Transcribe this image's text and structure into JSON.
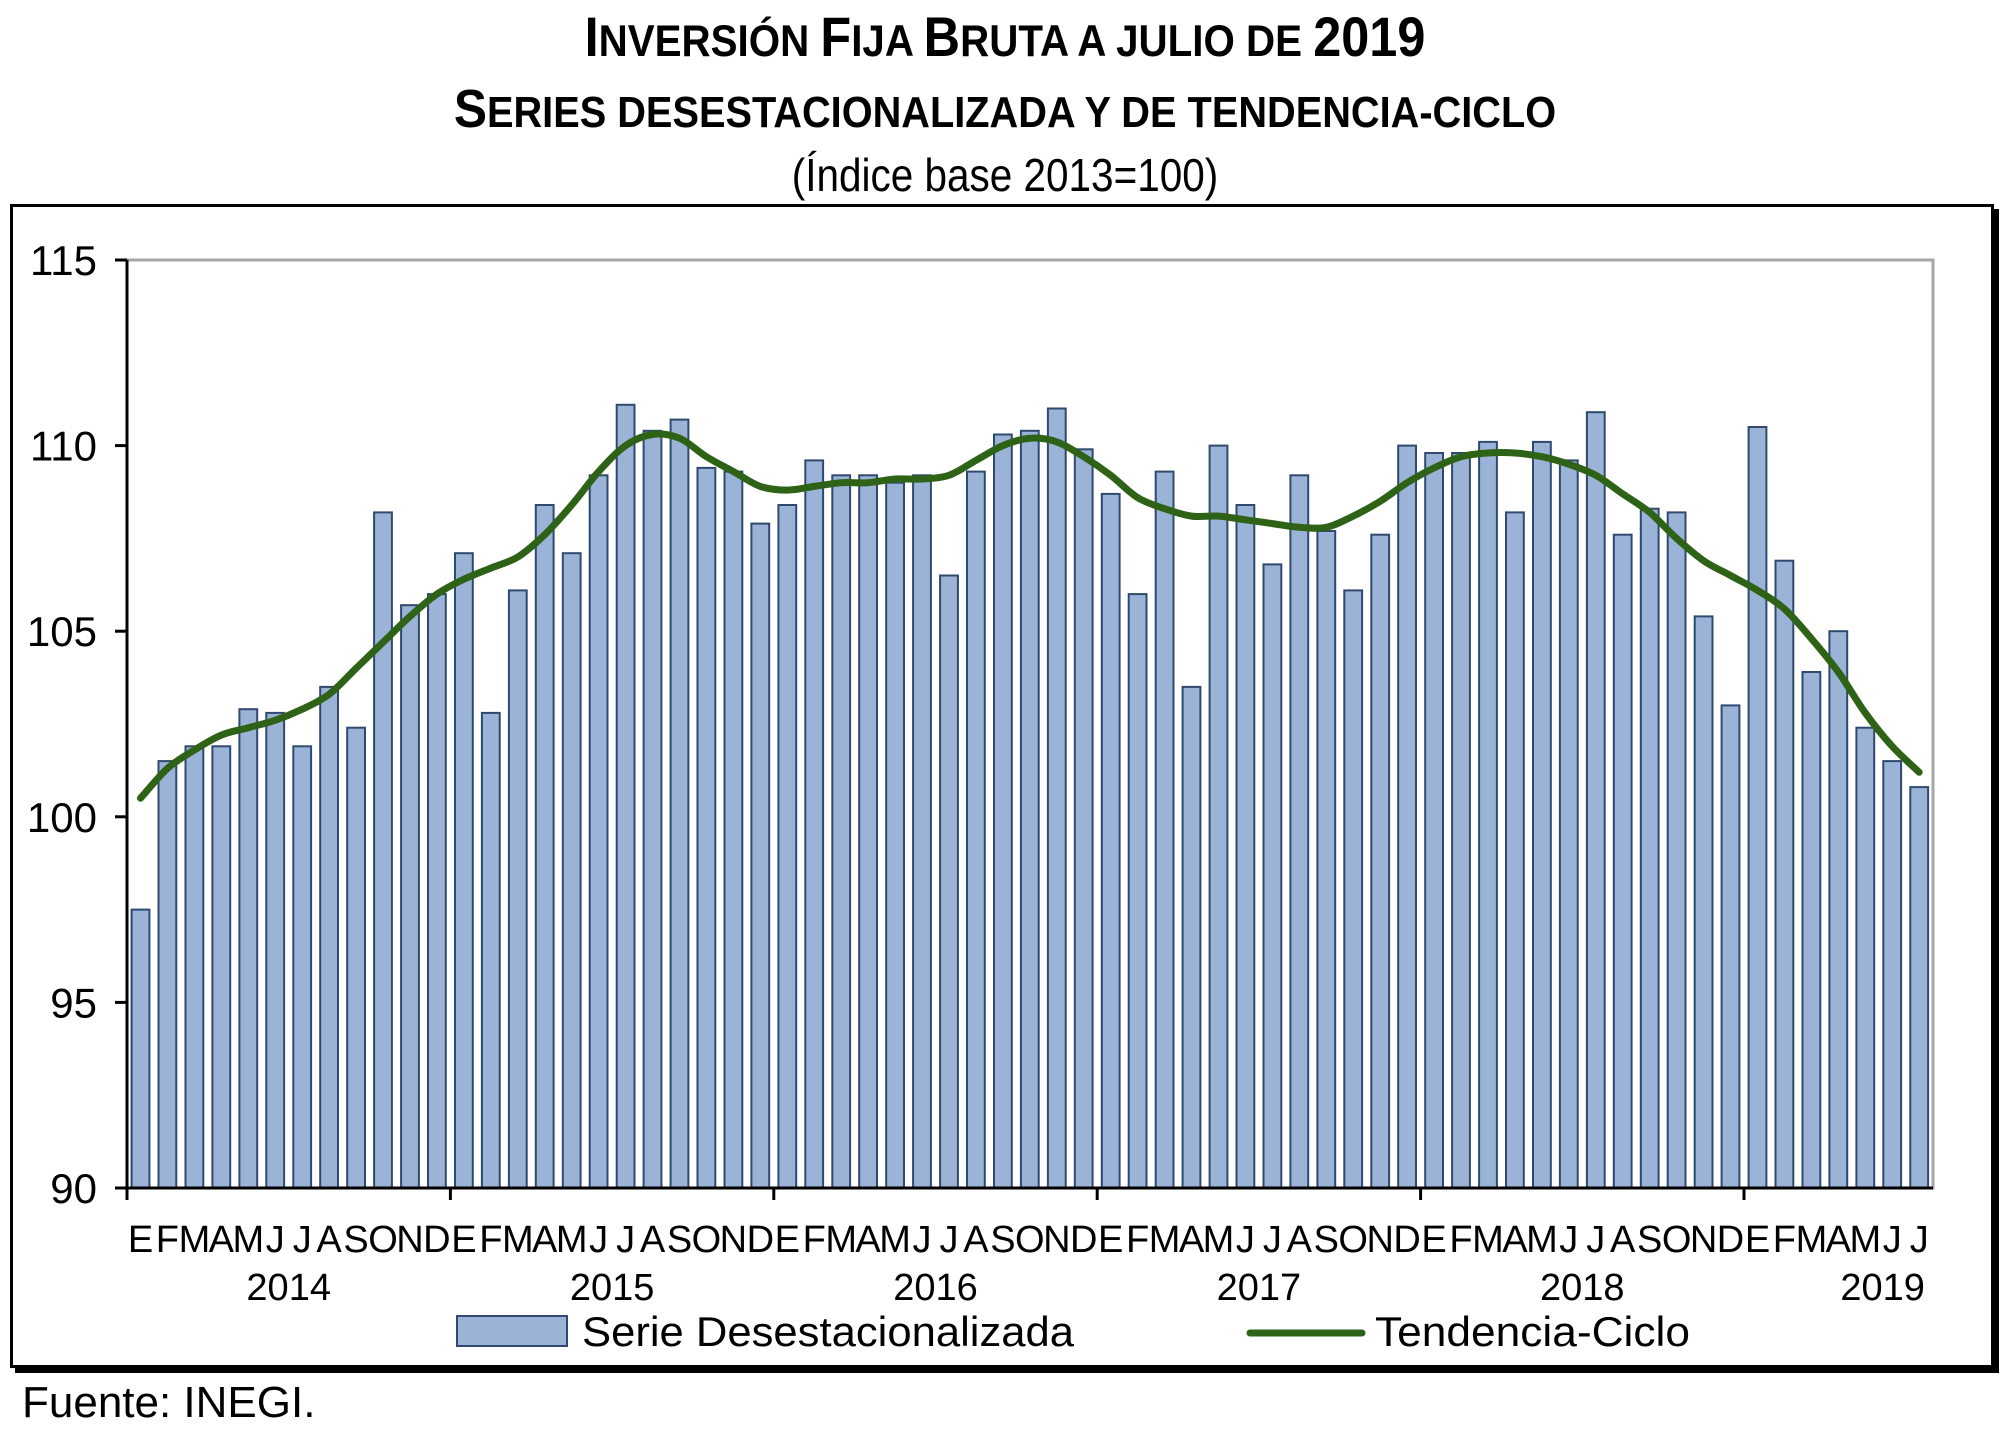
{
  "title": {
    "line1_parts": [
      {
        "cap": "I",
        "rest": "NVERSIÓN "
      },
      {
        "cap": "F",
        "rest": "IJA "
      },
      {
        "cap": "B",
        "rest": "RUTA A JULIO DE "
      },
      {
        "cap": "2019",
        "rest": ""
      }
    ],
    "line1": "Inversión Fija Bruta a julio de 2019",
    "line2_parts": [
      {
        "cap": "S",
        "rest": "ERIES DESESTACIONALIZADA Y DE TENDENCIA-CICLO"
      }
    ],
    "line2": "Series desestacionalizada y de tendencia-ciclo",
    "subtitle": "(Índice base 2013=100)"
  },
  "footer": {
    "source": "Fuente: INEGI."
  },
  "colors": {
    "bar_fill": "#9bb3d6",
    "bar_stroke": "#2f4a6e",
    "trend": "#2e6317",
    "grid_border": "#a6a6a6"
  },
  "chart_data": {
    "type": "bar",
    "title": "Inversión Fija Bruta a julio de 2019",
    "subtitle": "Series desestacionalizada y de tendencia-ciclo (Índice base 2013=100)",
    "xlabel": "",
    "ylabel": "",
    "ylim": [
      90,
      115
    ],
    "yticks": [
      90,
      95,
      100,
      105,
      110,
      115
    ],
    "ytick_labels": [
      "90",
      "95",
      "100",
      "105",
      "110",
      "115"
    ],
    "grid": false,
    "legend_position": "bottom",
    "month_labels": [
      "E",
      "F",
      "M",
      "A",
      "M",
      "J",
      "J",
      "A",
      "S",
      "O",
      "N",
      "D"
    ],
    "years": [
      {
        "label": "2014",
        "months": 12
      },
      {
        "label": "2015",
        "months": 12
      },
      {
        "label": "2016",
        "months": 12
      },
      {
        "label": "2017",
        "months": 12
      },
      {
        "label": "2018",
        "months": 12
      },
      {
        "label": "2019",
        "months": 7
      }
    ],
    "series": [
      {
        "name": "Serie Desestacionalizada",
        "type": "bar",
        "values": [
          97.5,
          101.5,
          101.9,
          101.9,
          102.9,
          102.8,
          101.9,
          103.5,
          102.4,
          108.2,
          105.7,
          106.0,
          107.1,
          102.8,
          106.1,
          108.4,
          107.1,
          109.2,
          111.1,
          110.4,
          110.7,
          109.4,
          109.3,
          107.9,
          108.4,
          109.6,
          109.2,
          109.2,
          109.0,
          109.2,
          106.5,
          109.3,
          110.3,
          110.4,
          111.0,
          109.9,
          108.7,
          106.0,
          109.3,
          103.5,
          110.0,
          108.4,
          106.8,
          109.2,
          107.7,
          106.1,
          107.6,
          110.0,
          109.8,
          109.8,
          110.1,
          108.2,
          110.1,
          109.6,
          110.9,
          107.6,
          108.3,
          108.2,
          105.4,
          103.0,
          110.5,
          106.9,
          103.9,
          105.0,
          102.4,
          101.5,
          100.8
        ]
      },
      {
        "name": "Tendencia-Ciclo",
        "type": "line",
        "values": [
          100.5,
          101.3,
          101.8,
          102.2,
          102.4,
          102.6,
          102.9,
          103.3,
          104.0,
          104.7,
          105.4,
          106.0,
          106.4,
          106.7,
          107.0,
          107.6,
          108.4,
          109.3,
          110.0,
          110.3,
          110.2,
          109.7,
          109.3,
          108.9,
          108.8,
          108.9,
          109.0,
          109.0,
          109.1,
          109.1,
          109.2,
          109.6,
          110.0,
          110.2,
          110.1,
          109.7,
          109.2,
          108.6,
          108.3,
          108.1,
          108.1,
          108.0,
          107.9,
          107.8,
          107.8,
          108.1,
          108.5,
          109.0,
          109.4,
          109.7,
          109.8,
          109.8,
          109.7,
          109.5,
          109.2,
          108.7,
          108.2,
          107.5,
          106.9,
          106.5,
          106.1,
          105.6,
          104.8,
          103.9,
          102.8,
          101.9,
          101.2
        ]
      }
    ]
  }
}
